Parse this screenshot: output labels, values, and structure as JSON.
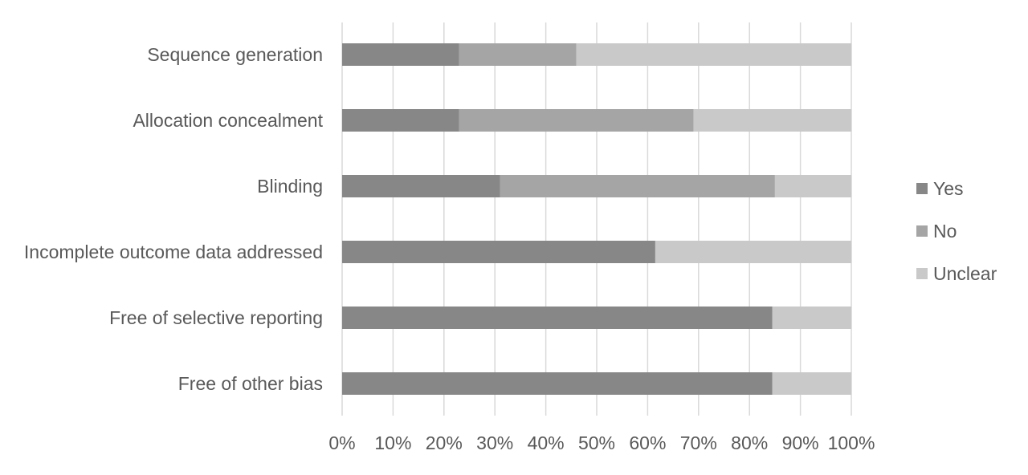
{
  "chart_data": {
    "type": "bar",
    "orientation": "horizontal",
    "stacked": "percent",
    "categories": [
      "Sequence generation",
      "Allocation concealment",
      "Blinding",
      "Incomplete outcome data addressed",
      "Free of selective reporting",
      "Free of other bias"
    ],
    "series": [
      {
        "name": "Yes",
        "color": "#878787",
        "values": [
          23,
          23,
          31,
          61.5,
          84.5,
          84.5
        ]
      },
      {
        "name": "No",
        "color": "#a5a5a5",
        "values": [
          23,
          46,
          54,
          0,
          0,
          0
        ]
      },
      {
        "name": "Unclear",
        "color": "#c9c9c9",
        "values": [
          54,
          31,
          15,
          38.5,
          15.5,
          15.5
        ]
      }
    ],
    "xlim": [
      0,
      100
    ],
    "xticks": [
      "0%",
      "10%",
      "20%",
      "30%",
      "40%",
      "50%",
      "60%",
      "70%",
      "80%",
      "90%",
      "100%"
    ],
    "grid": "vertical",
    "legend": "right",
    "title": "",
    "xlabel": "",
    "ylabel": ""
  }
}
